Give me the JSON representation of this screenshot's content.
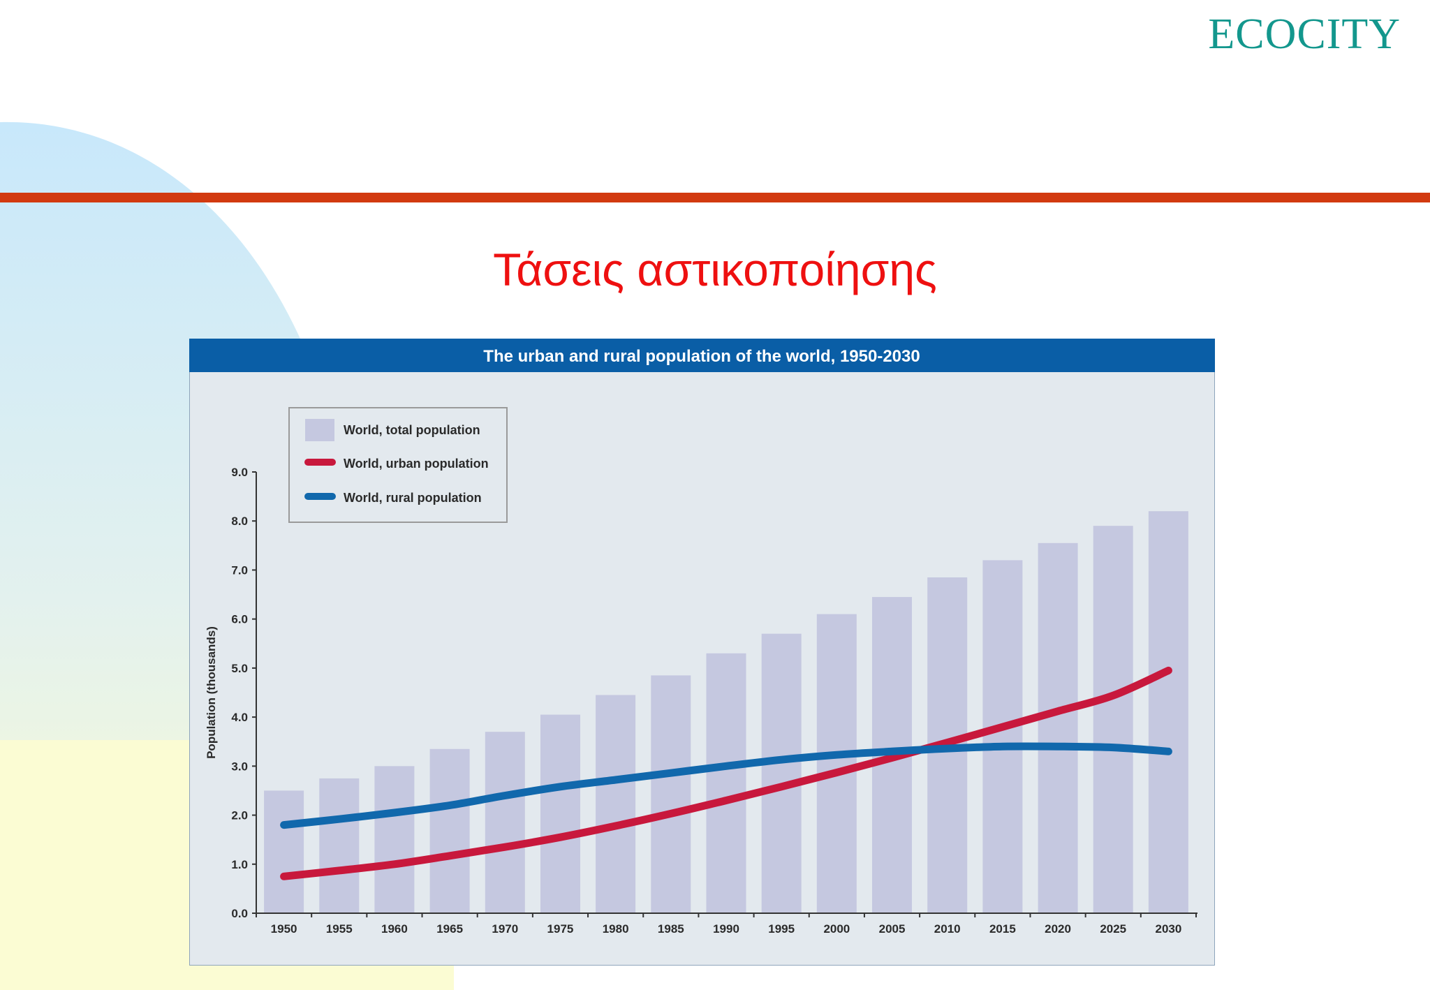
{
  "logo": "ECOCITY",
  "slide_title": "Τάσεις αστικοποίησης",
  "colors": {
    "logo": "#13978d",
    "title": "#ee1010",
    "rule": "#d23a10",
    "panel_header": "#0a5ea6",
    "panel_bg": "#e3e9ee",
    "bar": "#c5c8e0",
    "urban": "#c8183c",
    "rural": "#1168ac",
    "axis": "#333333"
  },
  "chart_data": {
    "type": "bar",
    "title": "The urban and rural population of the world, 1950-2030",
    "ylabel": "Population (thousands)",
    "xlabel": "",
    "ylim": [
      0,
      9
    ],
    "yticks": [
      "0.0",
      "1.0",
      "2.0",
      "3.0",
      "4.0",
      "5.0",
      "6.0",
      "7.0",
      "8.0",
      "9.0"
    ],
    "categories": [
      "1950",
      "1955",
      "1960",
      "1965",
      "1970",
      "1975",
      "1980",
      "1985",
      "1990",
      "1995",
      "2000",
      "2005",
      "2010",
      "2015",
      "2020",
      "2025",
      "2030"
    ],
    "legend_position": "top-left",
    "series": [
      {
        "name": "World, total population",
        "kind": "bar",
        "values": [
          2.5,
          2.75,
          3.0,
          3.35,
          3.7,
          4.05,
          4.45,
          4.85,
          5.3,
          5.7,
          6.1,
          6.45,
          6.85,
          7.2,
          7.55,
          7.9,
          8.2
        ]
      },
      {
        "name": "World, urban population",
        "kind": "line",
        "values": [
          0.75,
          0.87,
          1.0,
          1.17,
          1.35,
          1.55,
          1.78,
          2.03,
          2.3,
          2.58,
          2.87,
          3.17,
          3.48,
          3.8,
          4.12,
          4.44,
          4.95
        ]
      },
      {
        "name": "World, rural population",
        "kind": "line",
        "values": [
          1.8,
          1.92,
          2.05,
          2.2,
          2.4,
          2.58,
          2.72,
          2.86,
          3.0,
          3.13,
          3.23,
          3.3,
          3.36,
          3.4,
          3.4,
          3.38,
          3.3
        ]
      }
    ]
  }
}
